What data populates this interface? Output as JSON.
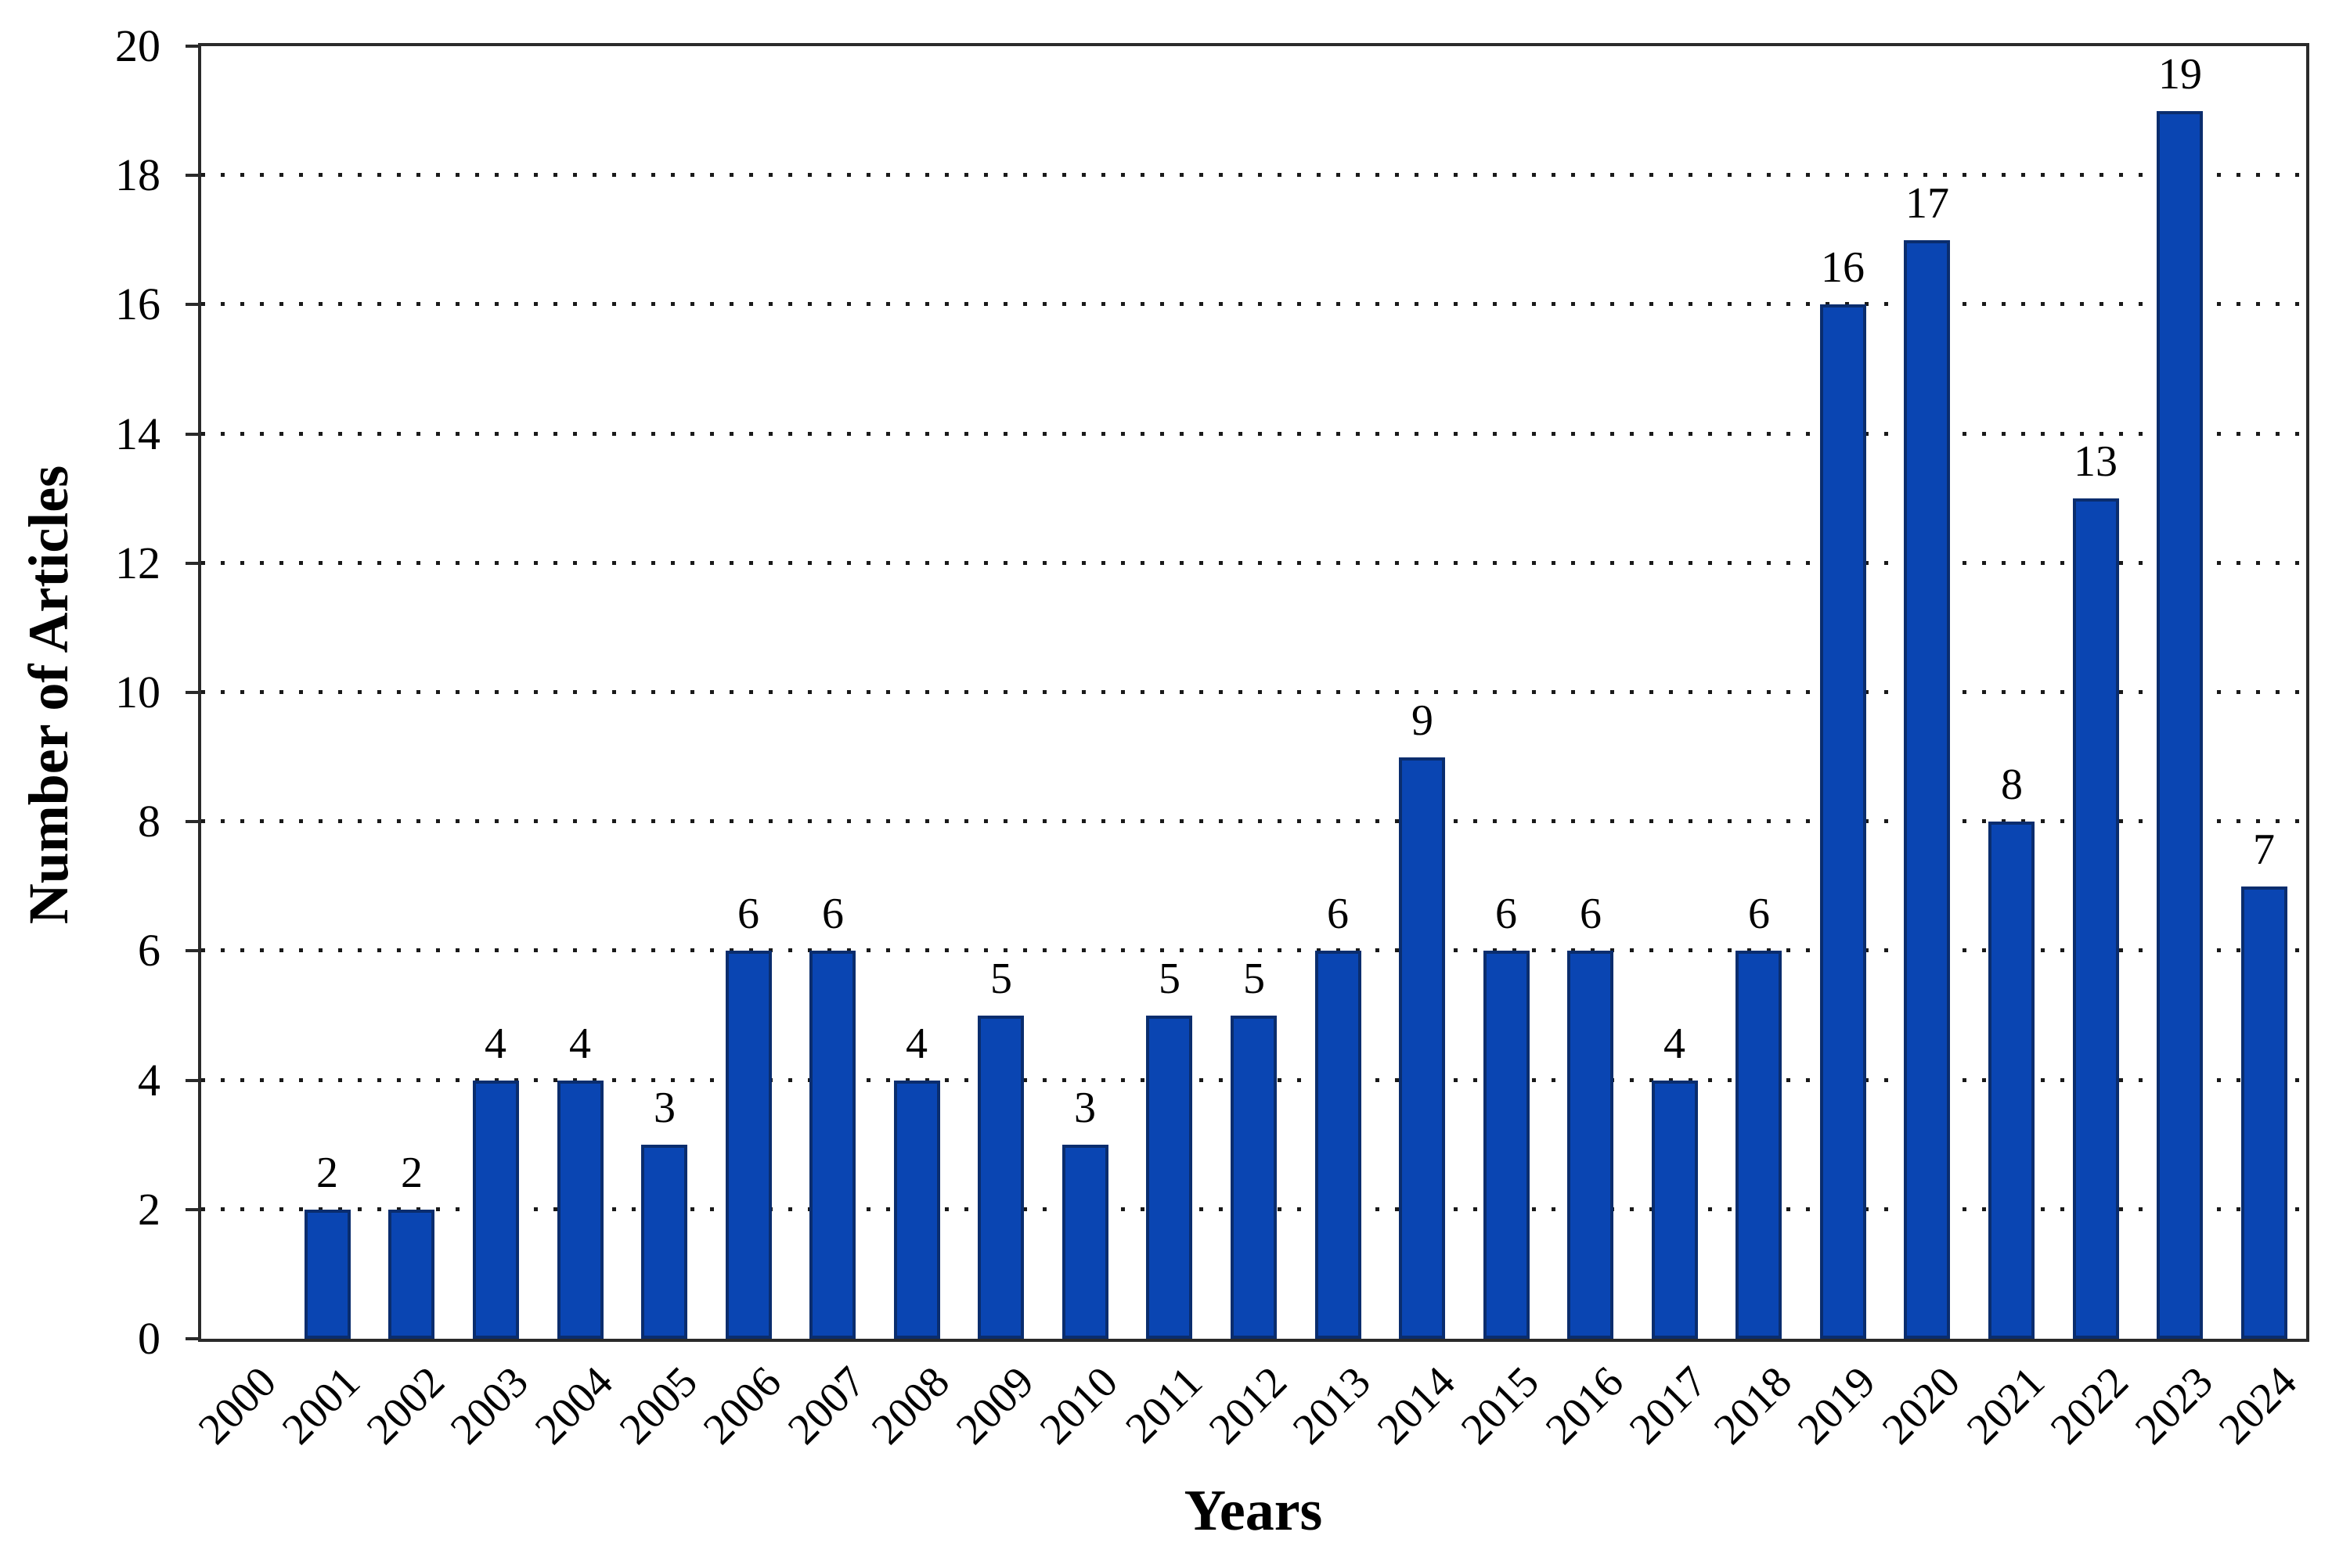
{
  "figure": {
    "background": "#ffffff"
  },
  "chart_data": {
    "type": "bar",
    "title": "",
    "xlabel": "Years",
    "ylabel": "Number of Articles",
    "categories": [
      "2000",
      "2001",
      "2002",
      "2003",
      "2004",
      "2005",
      "2006",
      "2007",
      "2008",
      "2009",
      "2010",
      "2011",
      "2012",
      "2013",
      "2014",
      "2015",
      "2016",
      "2017",
      "2018",
      "2019",
      "2020",
      "2021",
      "2022",
      "2023",
      "2024"
    ],
    "values": [
      0,
      2,
      2,
      4,
      4,
      3,
      6,
      6,
      4,
      5,
      3,
      5,
      5,
      6,
      9,
      6,
      6,
      4,
      6,
      16,
      17,
      8,
      13,
      19,
      7
    ],
    "ylim": [
      0,
      20
    ],
    "ytick_step": 2,
    "grid": "dotted-horizontal",
    "legend": "none",
    "data_labels": true,
    "colors": {
      "bar_fill": "#0a45b2",
      "bar_border": "#0a2d6e",
      "grid": "#1a1a1a",
      "axis": "#2a2a2a",
      "text": "#000000"
    }
  }
}
